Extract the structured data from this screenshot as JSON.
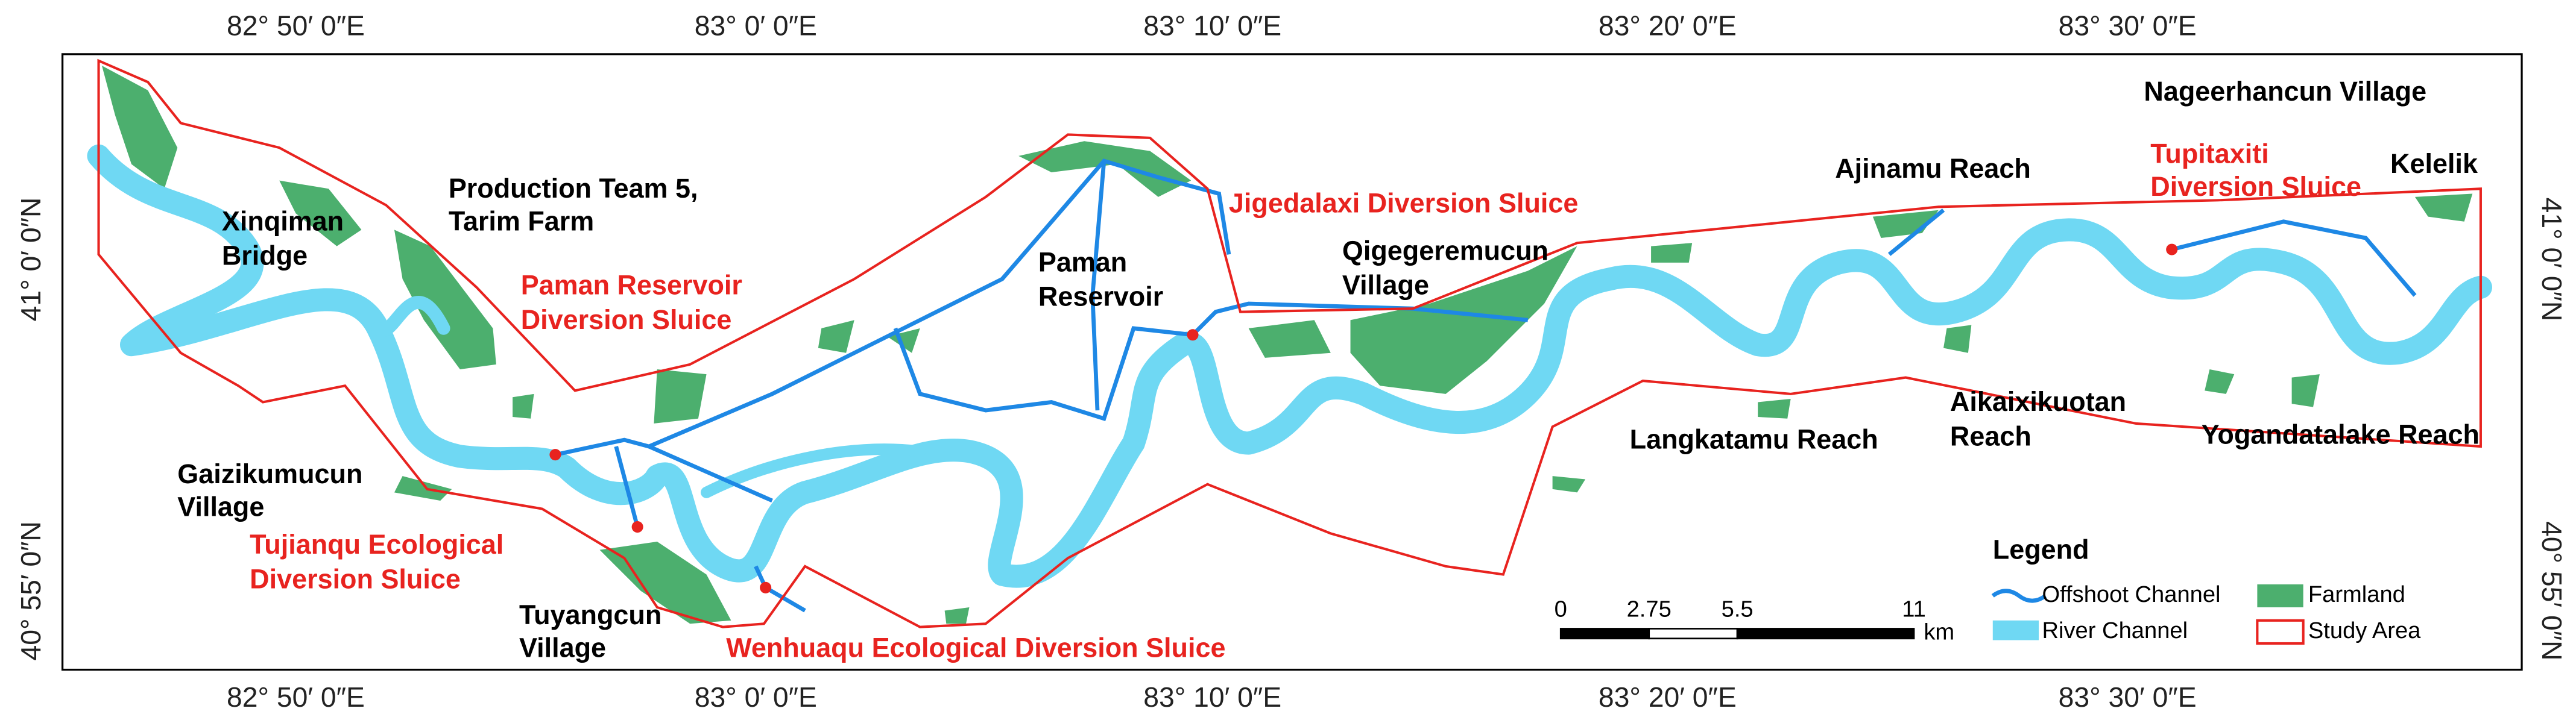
{
  "map": {
    "lon_labels": [
      "82° 50′ 0″E",
      "83° 0′ 0″E",
      "83° 10′ 0″E",
      "83° 20′ 0″E",
      "83° 30′ 0″E"
    ],
    "lat_labels": [
      "41° 0′ 0″N",
      "40° 55′ 0″N"
    ],
    "places": [
      {
        "lines": [
          "Xinqiman",
          "Bridge"
        ]
      },
      {
        "lines": [
          "Production Team 5,",
          "Tarim Farm"
        ]
      },
      {
        "lines": [
          "Paman",
          "Reservoir"
        ]
      },
      {
        "lines": [
          "Qigegeremucun",
          "Village"
        ]
      },
      {
        "lines": [
          "Ajinamu Reach"
        ]
      },
      {
        "lines": [
          "Nageerhancun Village"
        ]
      },
      {
        "lines": [
          "Kelelik"
        ]
      },
      {
        "lines": [
          "Gaizikumucun",
          "Village"
        ]
      },
      {
        "lines": [
          "Tuyangcun",
          "Village"
        ]
      },
      {
        "lines": [
          "Langkatamu Reach"
        ]
      },
      {
        "lines": [
          "Aikaixikuotan",
          "Reach"
        ]
      },
      {
        "lines": [
          "Yogandatalake Reach"
        ]
      }
    ],
    "sluices": [
      {
        "lines": [
          "Paman Reservoir",
          "Diversion Sluice"
        ]
      },
      {
        "lines": [
          "Jigedalaxi Diversion Sluice"
        ]
      },
      {
        "lines": [
          "Tupitaxiti",
          "Diversion Sluice"
        ]
      },
      {
        "lines": [
          "Tujianqu Ecological",
          "Diversion Sluice"
        ]
      },
      {
        "lines": [
          "Wenhuaqu Ecological Diversion Sluice"
        ]
      }
    ],
    "legend": {
      "title": "Legend",
      "items": [
        "Offshoot Channel",
        "River Channel",
        "Farmland",
        "Study Area"
      ]
    },
    "scale_bar": {
      "ticks": [
        0,
        2.75,
        5.5,
        11
      ],
      "unit": "km"
    }
  }
}
